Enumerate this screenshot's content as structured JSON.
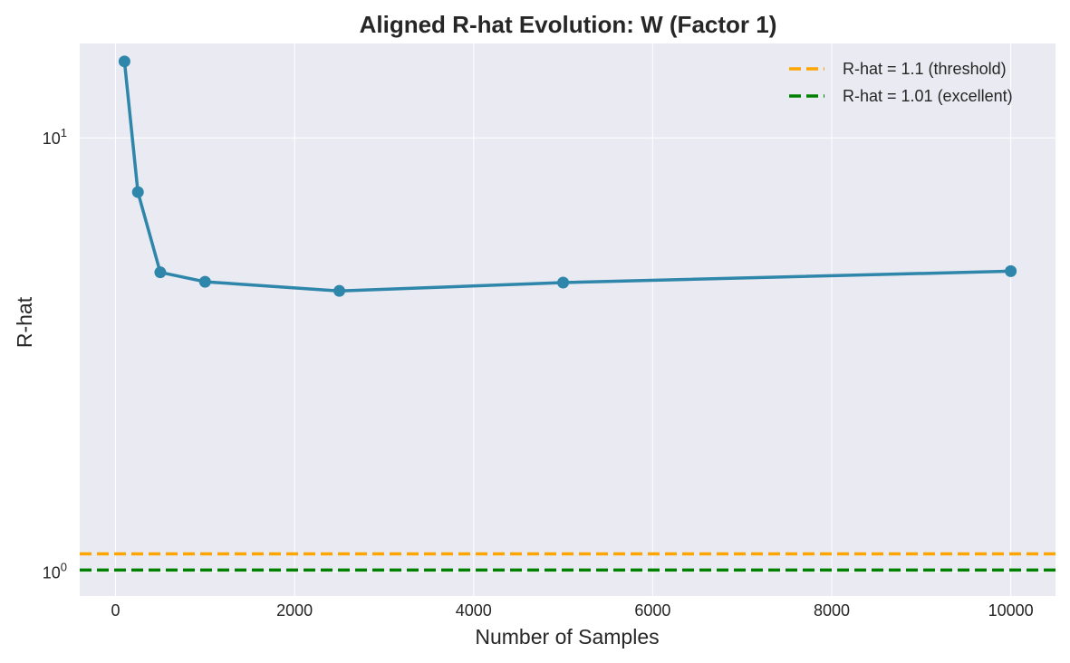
{
  "chart_data": {
    "type": "line",
    "title": "Aligned R-hat Evolution: W (Factor 1)",
    "xlabel": "Number of Samples",
    "ylabel": "R-hat",
    "xlim": [
      -400,
      10500
    ],
    "ylim": [
      0.88,
      16.5
    ],
    "yscale": "log",
    "grid": true,
    "legend_position": "top-right",
    "x_ticks": [
      {
        "value": 0,
        "label": "0"
      },
      {
        "value": 2000,
        "label": "2000"
      },
      {
        "value": 4000,
        "label": "4000"
      },
      {
        "value": 6000,
        "label": "6000"
      },
      {
        "value": 8000,
        "label": "8000"
      },
      {
        "value": 10000,
        "label": "10000"
      }
    ],
    "y_ticks": [
      {
        "value": 1,
        "base": "10",
        "exp": "0"
      },
      {
        "value": 10,
        "base": "10",
        "exp": "1"
      }
    ],
    "series": [
      {
        "color": "#2e86ab",
        "x": [
          100,
          250,
          500,
          1000,
          2500,
          5000,
          10000
        ],
        "y": [
          15.0,
          7.5,
          4.9,
          4.66,
          4.44,
          4.64,
          4.93
        ]
      }
    ],
    "reference_lines": [
      {
        "name": "R-hat = 1.1 (threshold)",
        "y": 1.1,
        "color": "#ffa500"
      },
      {
        "name": "R-hat = 1.01 (excellent)",
        "y": 1.01,
        "color": "#008000"
      }
    ]
  }
}
